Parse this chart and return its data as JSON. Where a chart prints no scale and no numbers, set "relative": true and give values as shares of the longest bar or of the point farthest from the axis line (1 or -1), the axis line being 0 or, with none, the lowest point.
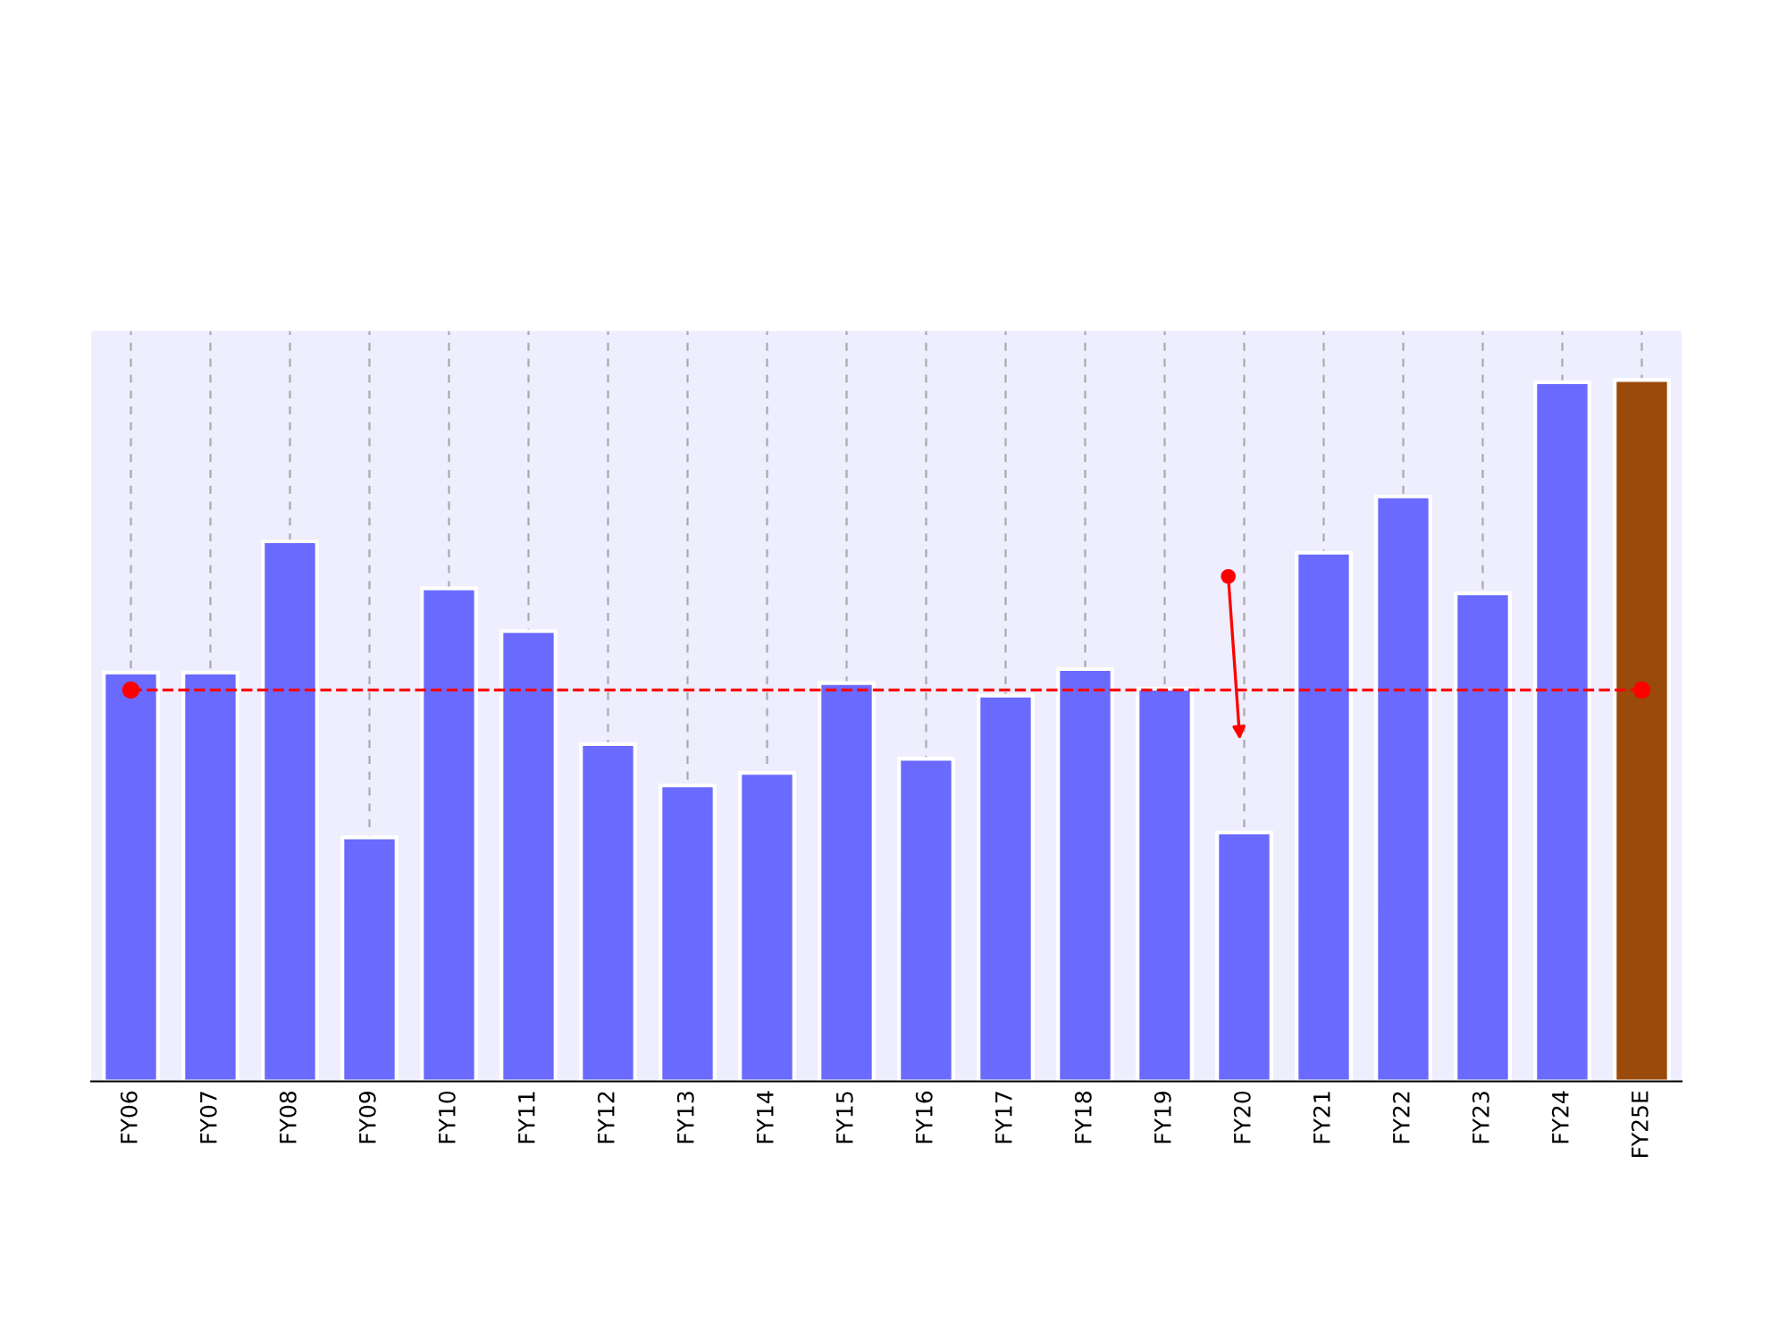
{
  "chart_data": {
    "type": "bar",
    "relative": true,
    "categories": [
      "FY06",
      "FY07",
      "FY08",
      "FY09",
      "FY10",
      "FY11",
      "FY12",
      "FY13",
      "FY14",
      "FY15",
      "FY16",
      "FY17",
      "FY18",
      "FY19",
      "FY20",
      "FY21",
      "FY22",
      "FY23",
      "FY24",
      "FY25E"
    ],
    "values": [
      0.583,
      0.583,
      0.77,
      0.348,
      0.703,
      0.642,
      0.481,
      0.422,
      0.44,
      0.568,
      0.46,
      0.55,
      0.588,
      0.56,
      0.355,
      0.754,
      0.834,
      0.696,
      0.997,
      1
    ],
    "colors": [
      "#6a6aff",
      "#6a6aff",
      "#6a6aff",
      "#6a6aff",
      "#6a6aff",
      "#6a6aff",
      "#6a6aff",
      "#6a6aff",
      "#6a6aff",
      "#6a6aff",
      "#6a6aff",
      "#6a6aff",
      "#6a6aff",
      "#6a6aff",
      "#6a6aff",
      "#6a6aff",
      "#6a6aff",
      "#6a6aff",
      "#6a6aff",
      "#9a4a0a"
    ],
    "series": [
      {
        "type": "line",
        "x": [
          "FY06",
          "FY25E"
        ],
        "values": [
          0.558,
          0.558
        ],
        "color": "#ff0000",
        "marker": "circle",
        "line_style": "dashed"
      }
    ],
    "grid": "x"
  }
}
